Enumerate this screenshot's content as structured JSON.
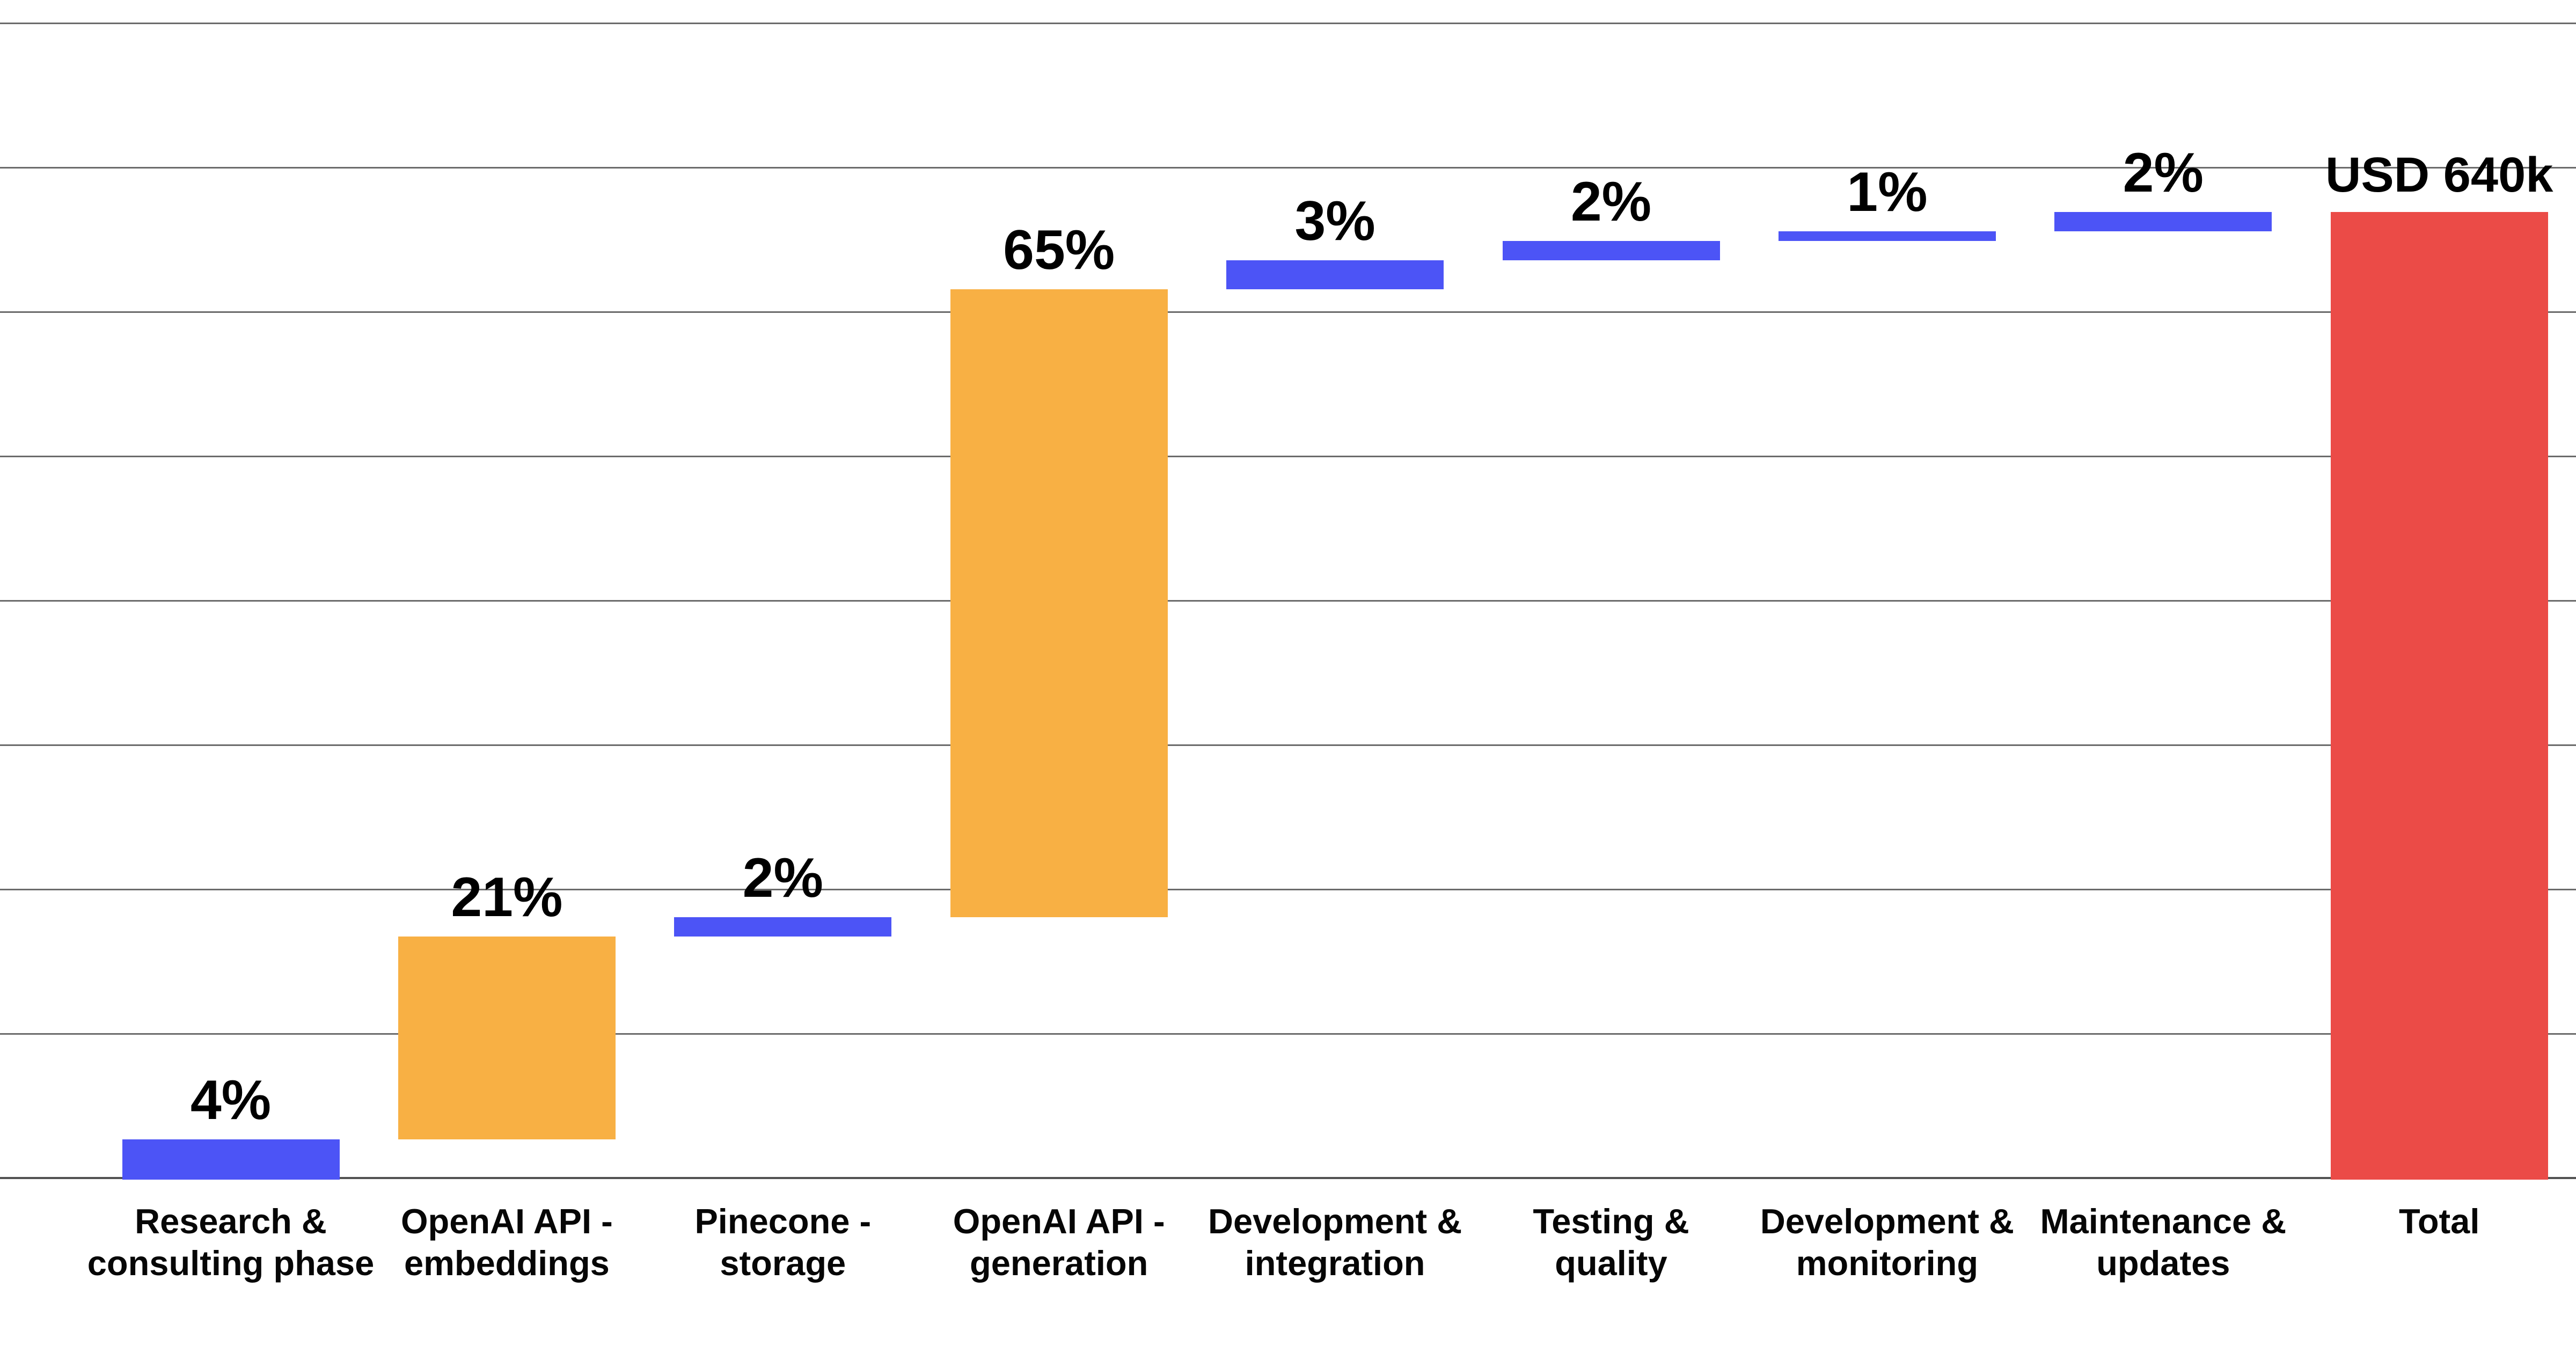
{
  "chart_data": {
    "type": "bar",
    "variant": "waterfall",
    "title": "",
    "xlabel": "",
    "ylabel": "",
    "unit": "percent of total project cost",
    "legend": "none",
    "grid": "horizontal",
    "axis_tick_labels_visible": false,
    "categories": [
      "Research & consulting phase",
      "OpenAI API - embeddings",
      "Pinecone - storage",
      "OpenAI API - generation",
      "Development & integration",
      "Testing & quality",
      "Development & monitoring",
      "Maintenance & updates",
      "Total"
    ],
    "category_label_lines": [
      [
        "Research &",
        "consulting phase"
      ],
      [
        "OpenAI API -",
        "embeddings"
      ],
      [
        "Pinecone -",
        "storage"
      ],
      [
        "OpenAI API -",
        "generation"
      ],
      [
        "Development &",
        "integration"
      ],
      [
        "Testing &",
        "quality"
      ],
      [
        "Development &",
        "monitoring"
      ],
      [
        "Maintenance &",
        "updates"
      ],
      [
        "Total"
      ]
    ],
    "steps": [
      {
        "category": "Research & consulting phase",
        "delta_pct": 4,
        "label": "4%",
        "role": "increase",
        "color": "#4C54F6"
      },
      {
        "category": "OpenAI API - embeddings",
        "delta_pct": 21,
        "label": "21%",
        "role": "increase",
        "color": "#F8B044"
      },
      {
        "category": "Pinecone - storage",
        "delta_pct": 2,
        "label": "2%",
        "role": "increase",
        "color": "#4C54F6"
      },
      {
        "category": "OpenAI API - generation",
        "delta_pct": 65,
        "label": "65%",
        "role": "increase",
        "color": "#F8B044"
      },
      {
        "category": "Development & integration",
        "delta_pct": 3,
        "label": "3%",
        "role": "increase",
        "color": "#4C54F6"
      },
      {
        "category": "Testing & quality",
        "delta_pct": 2,
        "label": "2%",
        "role": "increase",
        "color": "#4C54F6"
      },
      {
        "category": "Development & monitoring",
        "delta_pct": 1,
        "label": "1%",
        "role": "increase",
        "color": "#4C54F6"
      },
      {
        "category": "Maintenance & updates",
        "delta_pct": 2,
        "label": "2%",
        "role": "increase",
        "color": "#4C54F6"
      },
      {
        "category": "Total",
        "cumulative_pct": 100,
        "label": "USD 640k",
        "role": "total",
        "color": "#EB4B47"
      }
    ],
    "cumulative_pct": [
      4,
      25,
      27,
      92,
      95,
      97,
      98,
      100
    ],
    "total_value_label": "USD 640k",
    "colors": {
      "increase_minor": "#4C54F6",
      "increase_major": "#F8B044",
      "total": "#EB4B47",
      "gridline": "#6B6B6B",
      "axis": "#525252",
      "label_text": "#000000",
      "background": "#FFFFFF"
    }
  }
}
